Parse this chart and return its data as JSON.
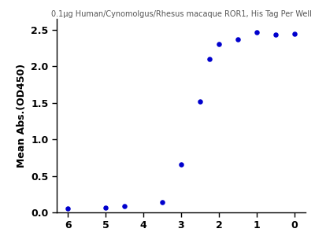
{
  "title": "0.1µg Human/Cynomolgus/Rhesus macaque ROR1, His Tag Per Well",
  "ylabel": "Mean Abs.(OD450)",
  "xlabel": "",
  "line_color": "#0000CD",
  "dot_color": "#0000CD",
  "x_data": [
    6,
    5,
    4.5,
    3.5,
    3,
    2.5,
    2.25,
    2,
    1.5,
    1,
    0.5,
    0
  ],
  "y_data": [
    0.055,
    0.065,
    0.09,
    0.14,
    0.66,
    1.52,
    2.1,
    2.3,
    2.37,
    2.47,
    2.43,
    2.44
  ],
  "ylim": [
    0.0,
    2.65
  ],
  "xlim": [
    6.3,
    -0.3
  ],
  "yticks": [
    0.0,
    0.5,
    1.0,
    1.5,
    2.0,
    2.5
  ],
  "xticks": [
    6,
    5,
    4,
    3,
    2,
    1,
    0
  ],
  "title_fontsize": 7.0,
  "label_fontsize": 9,
  "tick_fontsize": 9,
  "dot_size": 22,
  "line_width": 2.0,
  "background_color": "#ffffff"
}
